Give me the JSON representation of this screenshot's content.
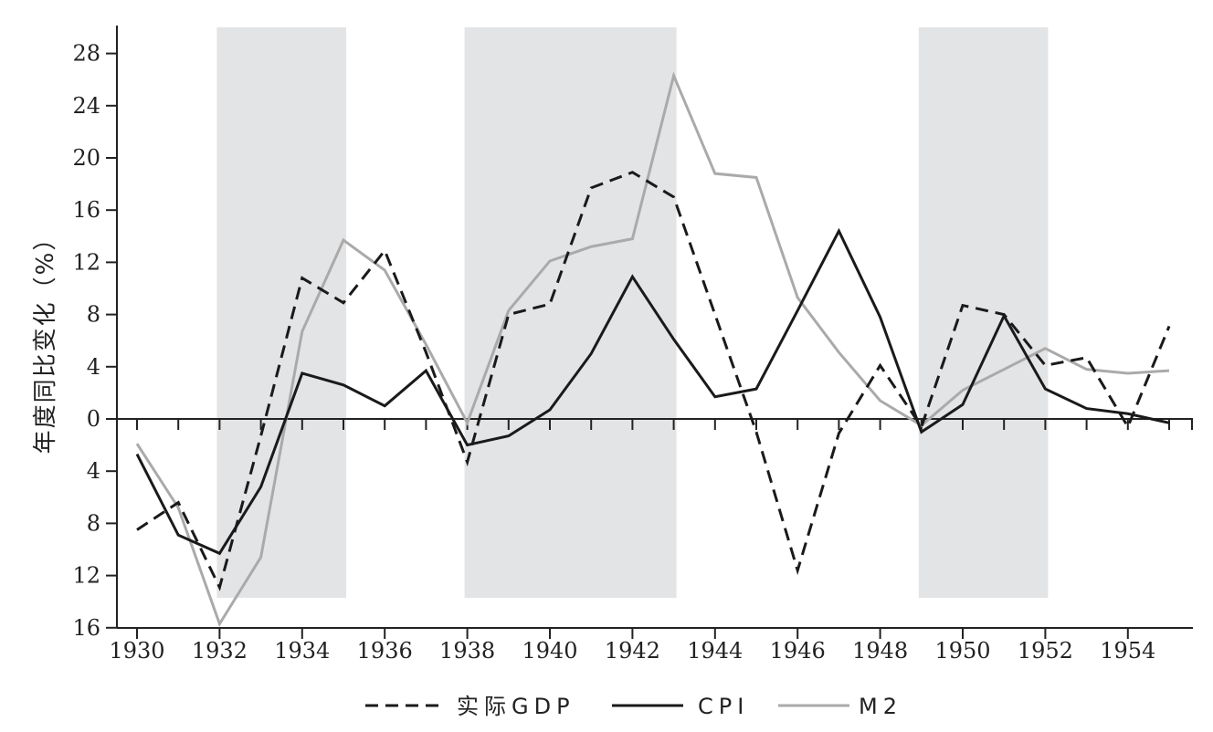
{
  "chart_data": {
    "type": "line",
    "title": "",
    "xlabel": "",
    "ylabel": "年度同比变化（%）",
    "x": [
      1930,
      1931,
      1932,
      1933,
      1934,
      1935,
      1936,
      1937,
      1938,
      1939,
      1940,
      1941,
      1942,
      1943,
      1944,
      1945,
      1946,
      1947,
      1948,
      1949,
      1950,
      1951,
      1952,
      1953,
      1954,
      1955
    ],
    "xlim": [
      1930,
      1955
    ],
    "ylim": [
      -16,
      30
    ],
    "x_ticks": [
      1930,
      1932,
      1934,
      1936,
      1938,
      1940,
      1942,
      1944,
      1946,
      1948,
      1950,
      1952,
      1954
    ],
    "y_ticks": [
      {
        "value": 28,
        "label": "28"
      },
      {
        "value": 24,
        "label": "24"
      },
      {
        "value": 20,
        "label": "20"
      },
      {
        "value": 16,
        "label": "16"
      },
      {
        "value": 12,
        "label": "12"
      },
      {
        "value": 8,
        "label": "8"
      },
      {
        "value": 4,
        "label": "4"
      },
      {
        "value": 0,
        "label": "0"
      },
      {
        "value": -4,
        "label": "4"
      },
      {
        "value": -8,
        "label": "8"
      },
      {
        "value": -12,
        "label": "12"
      },
      {
        "value": -16,
        "label": "16"
      }
    ],
    "shaded_periods": [
      [
        1932,
        1935
      ],
      [
        1938,
        1943
      ],
      [
        1949,
        1952
      ]
    ],
    "series": [
      {
        "name": "实际GDP",
        "style": "dashed",
        "color": "#1a1a1a",
        "values": [
          -8.5,
          -6.4,
          -12.9,
          -1.3,
          10.8,
          8.9,
          12.9,
          5.1,
          -3.3,
          8.0,
          8.8,
          17.7,
          18.9,
          17.0,
          8.0,
          -1.0,
          -11.6,
          -1.1,
          4.1,
          -0.6,
          8.7,
          8.0,
          4.1,
          4.7,
          -0.6,
          7.1
        ]
      },
      {
        "name": "CPI",
        "style": "solid",
        "color": "#1a1a1a",
        "values": [
          -2.7,
          -8.9,
          -10.3,
          -5.2,
          3.5,
          2.6,
          1.0,
          3.7,
          -2.0,
          -1.3,
          0.7,
          5.0,
          10.9,
          6.1,
          1.7,
          2.3,
          8.3,
          14.4,
          7.8,
          -1.0,
          1.1,
          7.9,
          2.3,
          0.8,
          0.4,
          -0.3
        ]
      },
      {
        "name": "M2",
        "style": "solid",
        "color": "#aaaaaa",
        "values": [
          -1.9,
          -6.8,
          -15.7,
          -10.6,
          6.7,
          13.7,
          11.4,
          5.7,
          -0.3,
          8.3,
          12.1,
          13.2,
          13.8,
          26.3,
          18.8,
          18.5,
          9.3,
          5.1,
          1.4,
          -0.5,
          2.2,
          3.8,
          5.4,
          3.8,
          3.5,
          3.7
        ]
      }
    ],
    "legend_position": "bottom-center",
    "shade_color": "#e3e4e6"
  }
}
